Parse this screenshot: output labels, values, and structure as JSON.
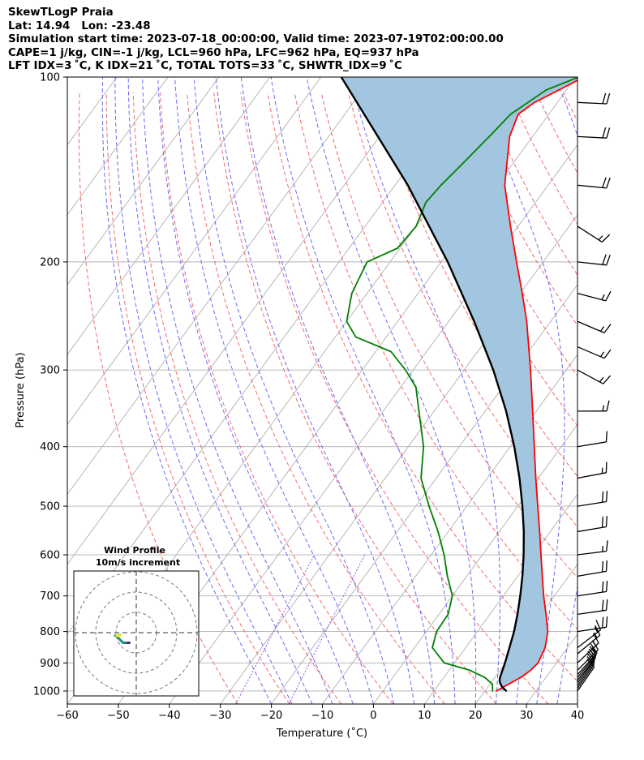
{
  "header": {
    "line1": "SkewTLogP Praia",
    "line2": "Lat: 14.94   Lon: -23.48",
    "line3": "Simulation start time: 2023-07-18_00:00:00, Valid time: 2023-07-19T02:00:00.00",
    "line4": "CAPE=1 j/kg, CIN=-1 j/kg, LCL=960 hPa, LFC=962 hPa, EQ=937 hPa",
    "line5": "LFT IDX=3 ˚C, K IDX=21 ˚C, TOTAL TOTS=33 ˚C, SHWTR_IDX=9 ˚C"
  },
  "chart_data": {
    "type": "line",
    "xlabel": "Temperature (˚C)",
    "ylabel": "Pressure (hPa)",
    "xlim": [
      -60,
      40
    ],
    "ylim": [
      1050,
      100
    ],
    "xticks": [
      "−60",
      "−50",
      "−40",
      "−30",
      "−20",
      "−10",
      "0",
      "10",
      "20",
      "30",
      "40"
    ],
    "yticks": [
      "100",
      "200",
      "300",
      "400",
      "500",
      "600",
      "700",
      "800",
      "900",
      "1000"
    ],
    "y_scale": "log",
    "grid": true,
    "colors": {
      "temperature": "#ff0000",
      "dewpoint": "#008000",
      "parcel": "#000000",
      "cape_fill": "#a3c6e0",
      "dry_adiabat": "#f26b6b",
      "moist_adiabat": "#6b6bf2",
      "mixing_ratio": "#9b4fd6",
      "isotherm": "#b0b0b0"
    },
    "series": [
      {
        "key": "temperature",
        "pressure": [
          1000,
          950,
          925,
          900,
          850,
          800,
          750,
          700,
          650,
          600,
          550,
          500,
          450,
          400,
          350,
          300,
          250,
          225,
          200,
          175,
          150,
          125,
          115,
          110,
          105,
          100
        ],
        "values": [
          22.2,
          25.1,
          26.0,
          26.4,
          25.6,
          23.8,
          21.0,
          17.9,
          14.8,
          11.5,
          7.9,
          3.9,
          -0.5,
          -5.3,
          -10.7,
          -17.0,
          -24.7,
          -29.6,
          -35.2,
          -41.5,
          -48.5,
          -54.5,
          -56.0,
          -54.5,
          -51.5,
          -48.5
        ]
      },
      {
        "key": "dewpoint",
        "pressure": [
          1000,
          975,
          950,
          925,
          900,
          850,
          800,
          750,
          700,
          650,
          600,
          550,
          500,
          450,
          400,
          350,
          320,
          300,
          280,
          265,
          250,
          225,
          200,
          190,
          175,
          160,
          150,
          140,
          125,
          115,
          105,
          100
        ],
        "values": [
          21.5,
          20.5,
          18.0,
          14.0,
          8.0,
          3.5,
          2.0,
          1.8,
          0.0,
          -3.8,
          -7.5,
          -12.0,
          -17.4,
          -23.0,
          -27.0,
          -33.0,
          -37.0,
          -41.5,
          -47.0,
          -56.0,
          -60.0,
          -63.0,
          -64.5,
          -60.5,
          -60.0,
          -61.5,
          -61.0,
          -60.0,
          -58.5,
          -57.5,
          -54.0,
          -49.5
        ]
      },
      {
        "key": "parcel",
        "pressure": [
          1000,
          985,
          970,
          960,
          950,
          900,
          850,
          800,
          750,
          700,
          650,
          600,
          550,
          500,
          450,
          400,
          350,
          300,
          250,
          200,
          150,
          100
        ],
        "values": [
          24.2,
          22.8,
          21.8,
          21.3,
          21.0,
          19.9,
          18.6,
          17.2,
          15.4,
          13.3,
          10.9,
          8.1,
          4.8,
          0.9,
          -3.7,
          -9.2,
          -15.9,
          -24.3,
          -35.0,
          -48.7,
          -67.5,
          -96.0
        ]
      }
    ],
    "wind_barbs": {
      "pressure": [
        1000,
        990,
        980,
        970,
        960,
        950,
        940,
        925,
        900,
        870,
        850,
        800,
        750,
        700,
        650,
        600,
        550,
        500,
        450,
        400,
        350,
        300,
        275,
        250,
        225,
        200,
        175,
        150,
        125,
        110
      ],
      "u": [
        -3.5,
        -3.5,
        -3.6,
        -3.7,
        -4.0,
        -4.2,
        -4.5,
        -5.0,
        -5.3,
        -6.0,
        -6.5,
        -10.0,
        -10.5,
        -10.0,
        -9.0,
        -8.0,
        -9.0,
        -9.5,
        -8.0,
        -6.0,
        -9.0,
        -6.5,
        -7.0,
        -7.0,
        -7.5,
        -9.0,
        -7.0,
        -10.0,
        -9.5,
        -10.5
      ],
      "v": [
        -5.0,
        -5.0,
        -5.0,
        -5.0,
        -5.0,
        -5.0,
        -5.0,
        -5.0,
        -5.0,
        -5.0,
        -5.0,
        -1.5,
        -1.5,
        -1.5,
        -1.5,
        -1.0,
        -1.5,
        -1.5,
        -1.5,
        -1.0,
        0.0,
        3.5,
        3.0,
        3.0,
        2.0,
        1.0,
        4.5,
        1.0,
        0.5,
        0.5
      ]
    },
    "hodograph": {
      "title": "Wind Profile",
      "subtitle": "10m/s increment",
      "rings": [
        10,
        20,
        30
      ],
      "u": [
        -3.5,
        -3.6,
        -4.0,
        -4.5,
        -5.0,
        -5.3,
        -6.0,
        -6.5,
        -10.0,
        -10.5,
        -10.0,
        -9.0,
        -8.0,
        -9.0,
        -9.5,
        -8.0
      ],
      "v": [
        -5.0,
        -5.0,
        -5.0,
        -5.0,
        -5.0,
        -5.0,
        -5.0,
        -5.0,
        -1.5,
        -1.5,
        -1.5,
        -1.5,
        -1.0,
        -1.5,
        -1.5,
        -1.5
      ]
    }
  }
}
